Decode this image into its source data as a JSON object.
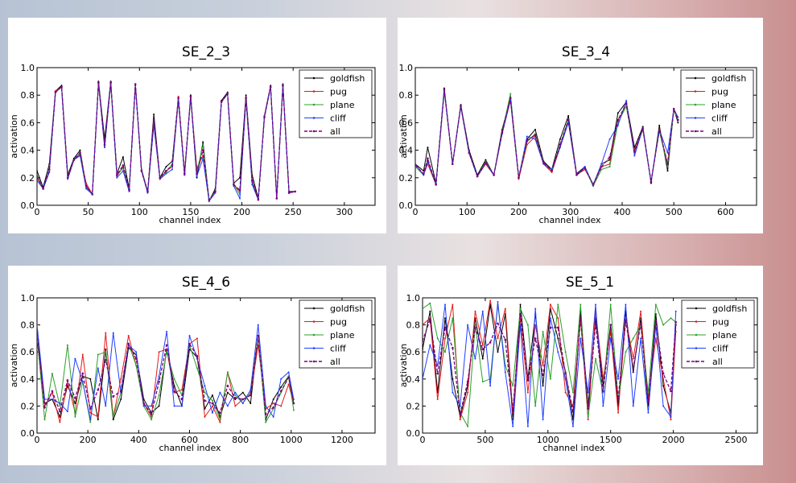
{
  "legend_labels": [
    "goldfish",
    "pug",
    "plane",
    "cliff",
    "all"
  ],
  "series_colors": {
    "goldfish": "#000000",
    "pug": "#e41a1c",
    "plane": "#2ca02c",
    "cliff": "#1f3fff",
    "all": "#7a007a"
  },
  "chart_data": [
    {
      "type": "line",
      "title": "SE_2_3",
      "xlabel": "channel index",
      "ylabel": "activation",
      "xlim": [
        0,
        330
      ],
      "ylim": [
        0.0,
        1.0
      ],
      "xticks": [
        "0",
        "50",
        "100",
        "150",
        "200",
        "250",
        "300"
      ],
      "yticks": [
        "0.0",
        "0.2",
        "0.4",
        "0.6",
        "0.8",
        "1.0"
      ],
      "legend": "top-right",
      "x": [
        0,
        6,
        12,
        18,
        24,
        30,
        36,
        42,
        48,
        54,
        60,
        66,
        72,
        78,
        84,
        90,
        96,
        102,
        108,
        114,
        120,
        126,
        132,
        138,
        144,
        150,
        156,
        162,
        168,
        174,
        180,
        186,
        192,
        198,
        204,
        210,
        216,
        222,
        228,
        234,
        240,
        246,
        252
      ],
      "series": [
        {
          "name": "goldfish",
          "values": [
            0.25,
            0.13,
            0.3,
            0.83,
            0.87,
            0.22,
            0.34,
            0.4,
            0.14,
            0.08,
            0.9,
            0.48,
            0.9,
            0.23,
            0.35,
            0.12,
            0.88,
            0.26,
            0.1,
            0.66,
            0.2,
            0.28,
            0.32,
            0.78,
            0.22,
            0.8,
            0.2,
            0.46,
            0.03,
            0.12,
            0.76,
            0.82,
            0.16,
            0.2,
            0.8,
            0.22,
            0.05,
            0.65,
            0.87,
            0.05,
            0.88,
            0.1,
            0.1
          ]
        },
        {
          "name": "pug",
          "values": [
            0.2,
            0.12,
            0.25,
            0.83,
            0.86,
            0.2,
            0.33,
            0.37,
            0.16,
            0.08,
            0.89,
            0.43,
            0.89,
            0.21,
            0.28,
            0.11,
            0.88,
            0.25,
            0.09,
            0.62,
            0.19,
            0.25,
            0.28,
            0.79,
            0.24,
            0.79,
            0.27,
            0.36,
            0.04,
            0.1,
            0.75,
            0.81,
            0.15,
            0.1,
            0.78,
            0.18,
            0.04,
            0.64,
            0.86,
            0.05,
            0.87,
            0.09,
            0.1
          ]
        },
        {
          "name": "plane",
          "values": [
            0.22,
            0.12,
            0.26,
            0.82,
            0.86,
            0.2,
            0.33,
            0.38,
            0.13,
            0.08,
            0.89,
            0.42,
            0.89,
            0.22,
            0.27,
            0.11,
            0.87,
            0.25,
            0.1,
            0.6,
            0.2,
            0.24,
            0.3,
            0.77,
            0.23,
            0.79,
            0.24,
            0.44,
            0.04,
            0.1,
            0.75,
            0.81,
            0.15,
            0.08,
            0.78,
            0.17,
            0.04,
            0.64,
            0.86,
            0.05,
            0.87,
            0.09,
            0.1
          ]
        },
        {
          "name": "cliff",
          "values": [
            0.18,
            0.12,
            0.24,
            0.82,
            0.86,
            0.19,
            0.33,
            0.36,
            0.12,
            0.08,
            0.89,
            0.42,
            0.89,
            0.2,
            0.25,
            0.1,
            0.87,
            0.25,
            0.09,
            0.58,
            0.19,
            0.23,
            0.26,
            0.76,
            0.22,
            0.79,
            0.21,
            0.34,
            0.03,
            0.09,
            0.75,
            0.81,
            0.14,
            0.05,
            0.77,
            0.15,
            0.04,
            0.64,
            0.86,
            0.05,
            0.87,
            0.09,
            0.1
          ]
        },
        {
          "name": "all",
          "values": [
            0.21,
            0.12,
            0.26,
            0.82,
            0.86,
            0.2,
            0.33,
            0.38,
            0.14,
            0.08,
            0.89,
            0.44,
            0.89,
            0.22,
            0.29,
            0.11,
            0.88,
            0.25,
            0.1,
            0.62,
            0.2,
            0.25,
            0.29,
            0.78,
            0.23,
            0.79,
            0.23,
            0.4,
            0.04,
            0.1,
            0.75,
            0.81,
            0.15,
            0.11,
            0.78,
            0.18,
            0.04,
            0.64,
            0.86,
            0.05,
            0.87,
            0.09,
            0.1
          ]
        }
      ]
    },
    {
      "type": "line",
      "title": "SE_3_4",
      "xlabel": "channel index",
      "ylabel": "activation",
      "xlim": [
        0,
        660
      ],
      "ylim": [
        0.0,
        1.0
      ],
      "xticks": [
        "0",
        "100",
        "200",
        "300",
        "400",
        "500",
        "600"
      ],
      "yticks": [
        "0.0",
        "0.2",
        "0.4",
        "0.6",
        "0.8",
        "1.0"
      ],
      "legend": "top-right",
      "x": [
        0,
        16,
        24,
        40,
        56,
        72,
        88,
        104,
        120,
        136,
        152,
        168,
        184,
        200,
        216,
        232,
        248,
        264,
        280,
        296,
        312,
        328,
        344,
        360,
        376,
        392,
        408,
        424,
        440,
        456,
        472,
        488,
        500,
        508
      ],
      "series": [
        {
          "name": "goldfish",
          "values": [
            0.3,
            0.25,
            0.42,
            0.16,
            0.85,
            0.3,
            0.73,
            0.4,
            0.22,
            0.33,
            0.22,
            0.55,
            0.78,
            0.2,
            0.48,
            0.55,
            0.32,
            0.26,
            0.48,
            0.65,
            0.23,
            0.28,
            0.14,
            0.3,
            0.33,
            0.67,
            0.75,
            0.42,
            0.57,
            0.16,
            0.58,
            0.25,
            0.7,
            0.6
          ]
        },
        {
          "name": "pug",
          "values": [
            0.3,
            0.22,
            0.3,
            0.15,
            0.83,
            0.3,
            0.72,
            0.38,
            0.21,
            0.3,
            0.22,
            0.52,
            0.76,
            0.19,
            0.44,
            0.5,
            0.3,
            0.24,
            0.42,
            0.62,
            0.22,
            0.26,
            0.15,
            0.28,
            0.3,
            0.62,
            0.72,
            0.4,
            0.55,
            0.17,
            0.55,
            0.3,
            0.7,
            0.62
          ]
        },
        {
          "name": "plane",
          "values": [
            0.28,
            0.22,
            0.33,
            0.15,
            0.83,
            0.3,
            0.72,
            0.38,
            0.21,
            0.32,
            0.22,
            0.53,
            0.81,
            0.2,
            0.46,
            0.52,
            0.31,
            0.25,
            0.44,
            0.62,
            0.22,
            0.27,
            0.14,
            0.26,
            0.28,
            0.6,
            0.72,
            0.38,
            0.55,
            0.17,
            0.54,
            0.28,
            0.69,
            0.62
          ]
        },
        {
          "name": "cliff",
          "values": [
            0.3,
            0.22,
            0.32,
            0.15,
            0.84,
            0.3,
            0.72,
            0.38,
            0.21,
            0.31,
            0.22,
            0.52,
            0.77,
            0.2,
            0.5,
            0.48,
            0.3,
            0.26,
            0.42,
            0.6,
            0.22,
            0.28,
            0.15,
            0.3,
            0.48,
            0.58,
            0.76,
            0.36,
            0.56,
            0.17,
            0.55,
            0.38,
            0.7,
            0.64
          ]
        },
        {
          "name": "all",
          "values": [
            0.29,
            0.23,
            0.34,
            0.15,
            0.84,
            0.3,
            0.72,
            0.38,
            0.21,
            0.31,
            0.22,
            0.53,
            0.78,
            0.2,
            0.47,
            0.51,
            0.31,
            0.25,
            0.44,
            0.62,
            0.22,
            0.27,
            0.15,
            0.28,
            0.35,
            0.62,
            0.74,
            0.39,
            0.56,
            0.17,
            0.55,
            0.3,
            0.7,
            0.62
          ]
        }
      ]
    },
    {
      "type": "line",
      "title": "SE_4_6",
      "xlabel": "channel index",
      "ylabel": "activation",
      "xlim": [
        0,
        1330
      ],
      "ylim": [
        0.0,
        1.0
      ],
      "xticks": [
        "0",
        "200",
        "400",
        "600",
        "800",
        "1000",
        "1200"
      ],
      "yticks": [
        "0.0",
        "0.2",
        "0.4",
        "0.6",
        "0.8",
        "1.0"
      ],
      "legend": "top-right",
      "x": [
        0,
        30,
        60,
        90,
        120,
        150,
        180,
        210,
        240,
        270,
        300,
        330,
        360,
        390,
        420,
        450,
        480,
        510,
        540,
        570,
        600,
        630,
        660,
        690,
        720,
        750,
        780,
        810,
        840,
        870,
        900,
        930,
        960,
        990,
        1010
      ],
      "series": [
        {
          "name": "goldfish",
          "values": [
            0.74,
            0.22,
            0.25,
            0.12,
            0.35,
            0.22,
            0.42,
            0.4,
            0.1,
            0.62,
            0.1,
            0.25,
            0.63,
            0.58,
            0.25,
            0.15,
            0.2,
            0.62,
            0.35,
            0.2,
            0.62,
            0.56,
            0.18,
            0.28,
            0.12,
            0.3,
            0.25,
            0.3,
            0.22,
            0.72,
            0.1,
            0.25,
            0.34,
            0.42,
            0.22
          ]
        },
        {
          "name": "pug",
          "values": [
            0.7,
            0.2,
            0.3,
            0.08,
            0.38,
            0.15,
            0.58,
            0.15,
            0.12,
            0.74,
            0.12,
            0.4,
            0.72,
            0.5,
            0.22,
            0.12,
            0.6,
            0.62,
            0.3,
            0.32,
            0.66,
            0.7,
            0.12,
            0.2,
            0.08,
            0.45,
            0.2,
            0.25,
            0.28,
            0.65,
            0.18,
            0.22,
            0.2,
            0.36,
            0.22
          ]
        },
        {
          "name": "plane",
          "values": [
            0.72,
            0.1,
            0.44,
            0.2,
            0.65,
            0.12,
            0.38,
            0.08,
            0.58,
            0.6,
            0.12,
            0.3,
            0.66,
            0.5,
            0.2,
            0.1,
            0.28,
            0.6,
            0.4,
            0.28,
            0.65,
            0.48,
            0.3,
            0.24,
            0.1,
            0.45,
            0.28,
            0.22,
            0.3,
            0.72,
            0.08,
            0.18,
            0.3,
            0.42,
            0.17
          ]
        },
        {
          "name": "cliff",
          "values": [
            0.8,
            0.25,
            0.25,
            0.22,
            0.16,
            0.55,
            0.38,
            0.1,
            0.48,
            0.2,
            0.74,
            0.3,
            0.65,
            0.6,
            0.2,
            0.2,
            0.42,
            0.75,
            0.2,
            0.2,
            0.72,
            0.55,
            0.35,
            0.15,
            0.3,
            0.2,
            0.3,
            0.22,
            0.32,
            0.8,
            0.2,
            0.12,
            0.4,
            0.45,
            0.25
          ]
        },
        {
          "name": "all",
          "values": [
            0.74,
            0.19,
            0.31,
            0.16,
            0.39,
            0.26,
            0.44,
            0.18,
            0.32,
            0.54,
            0.27,
            0.31,
            0.66,
            0.55,
            0.22,
            0.14,
            0.38,
            0.65,
            0.31,
            0.25,
            0.66,
            0.57,
            0.24,
            0.22,
            0.15,
            0.35,
            0.26,
            0.25,
            0.28,
            0.72,
            0.14,
            0.19,
            0.31,
            0.41,
            0.22
          ]
        }
      ]
    },
    {
      "type": "line",
      "title": "SE_5_1",
      "xlabel": "channel index",
      "ylabel": "activation",
      "xlim": [
        0,
        2670
      ],
      "ylim": [
        0.0,
        1.0
      ],
      "xticks": [
        "0",
        "500",
        "1000",
        "1500",
        "2000",
        "2500"
      ],
      "yticks": [
        "0.0",
        "0.2",
        "0.4",
        "0.6",
        "0.8",
        "1.0"
      ],
      "legend": "top-right",
      "x": [
        0,
        60,
        120,
        180,
        240,
        300,
        360,
        420,
        480,
        540,
        600,
        660,
        720,
        780,
        840,
        900,
        960,
        1020,
        1080,
        1140,
        1200,
        1260,
        1320,
        1380,
        1440,
        1500,
        1560,
        1620,
        1680,
        1740,
        1800,
        1860,
        1920,
        1980,
        2020
      ],
      "series": [
        {
          "name": "goldfish",
          "values": [
            0.62,
            0.9,
            0.3,
            0.85,
            0.4,
            0.12,
            0.35,
            0.85,
            0.55,
            0.95,
            0.6,
            0.88,
            0.1,
            0.95,
            0.4,
            0.88,
            0.35,
            0.92,
            0.7,
            0.45,
            0.1,
            0.9,
            0.2,
            0.85,
            0.35,
            0.8,
            0.2,
            0.9,
            0.45,
            0.85,
            0.2,
            0.88,
            0.35,
            0.15,
            0.8
          ]
        },
        {
          "name": "pug",
          "values": [
            0.8,
            0.85,
            0.25,
            0.7,
            0.95,
            0.1,
            0.3,
            0.9,
            0.65,
            0.98,
            0.7,
            0.92,
            0.15,
            0.85,
            0.3,
            0.8,
            0.5,
            0.95,
            0.85,
            0.3,
            0.2,
            0.85,
            0.1,
            0.9,
            0.4,
            0.75,
            0.15,
            0.85,
            0.55,
            0.9,
            0.25,
            0.7,
            0.4,
            0.1,
            0.75
          ]
        },
        {
          "name": "plane",
          "values": [
            0.92,
            0.96,
            0.7,
            0.6,
            0.85,
            0.15,
            0.05,
            0.8,
            0.38,
            0.4,
            0.95,
            0.5,
            0.35,
            0.92,
            0.8,
            0.2,
            0.75,
            0.4,
            0.95,
            0.6,
            0.3,
            0.95,
            0.12,
            0.55,
            0.3,
            0.95,
            0.25,
            0.6,
            0.7,
            0.8,
            0.3,
            0.95,
            0.8,
            0.85,
            0.82
          ]
        },
        {
          "name": "cliff",
          "values": [
            0.4,
            0.65,
            0.5,
            0.95,
            0.3,
            0.2,
            0.8,
            0.55,
            0.9,
            0.35,
            0.97,
            0.45,
            0.05,
            0.8,
            0.05,
            0.92,
            0.1,
            0.85,
            0.6,
            0.4,
            0.05,
            0.7,
            0.3,
            0.95,
            0.2,
            0.7,
            0.4,
            0.95,
            0.2,
            0.7,
            0.15,
            0.8,
            0.2,
            0.12,
            0.9
          ]
        },
        {
          "name": "all",
          "values": [
            0.68,
            0.84,
            0.44,
            0.78,
            0.63,
            0.14,
            0.38,
            0.78,
            0.62,
            0.67,
            0.81,
            0.69,
            0.16,
            0.88,
            0.39,
            0.7,
            0.43,
            0.78,
            0.78,
            0.44,
            0.16,
            0.85,
            0.18,
            0.81,
            0.31,
            0.8,
            0.25,
            0.83,
            0.48,
            0.81,
            0.23,
            0.83,
            0.44,
            0.31,
            0.82
          ]
        }
      ]
    }
  ]
}
